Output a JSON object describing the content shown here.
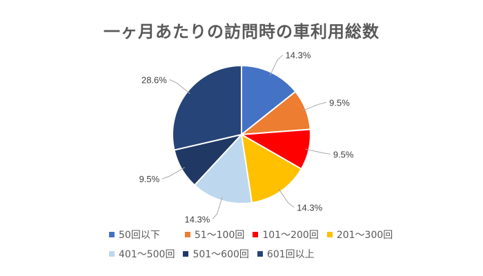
{
  "chart_data": {
    "type": "pie",
    "title": "一ヶ月あたりの訪問時の車利用総数",
    "categories": [
      "50回以下",
      "51〜100回",
      "101〜200回",
      "201〜300回",
      "401〜500回",
      "501〜600回",
      "601回以上"
    ],
    "values": [
      14.3,
      9.5,
      9.5,
      14.3,
      14.3,
      9.5,
      28.6
    ],
    "labels": [
      "14.3%",
      "9.5%",
      "9.5%",
      "14.3%",
      "14.3%",
      "9.5%",
      "28.6%"
    ],
    "colors": [
      "#4472C4",
      "#ED7D31",
      "#FF0000",
      "#FFC000",
      "#BDD7EE",
      "#203864",
      "#264478"
    ],
    "legend_position": "bottom"
  }
}
